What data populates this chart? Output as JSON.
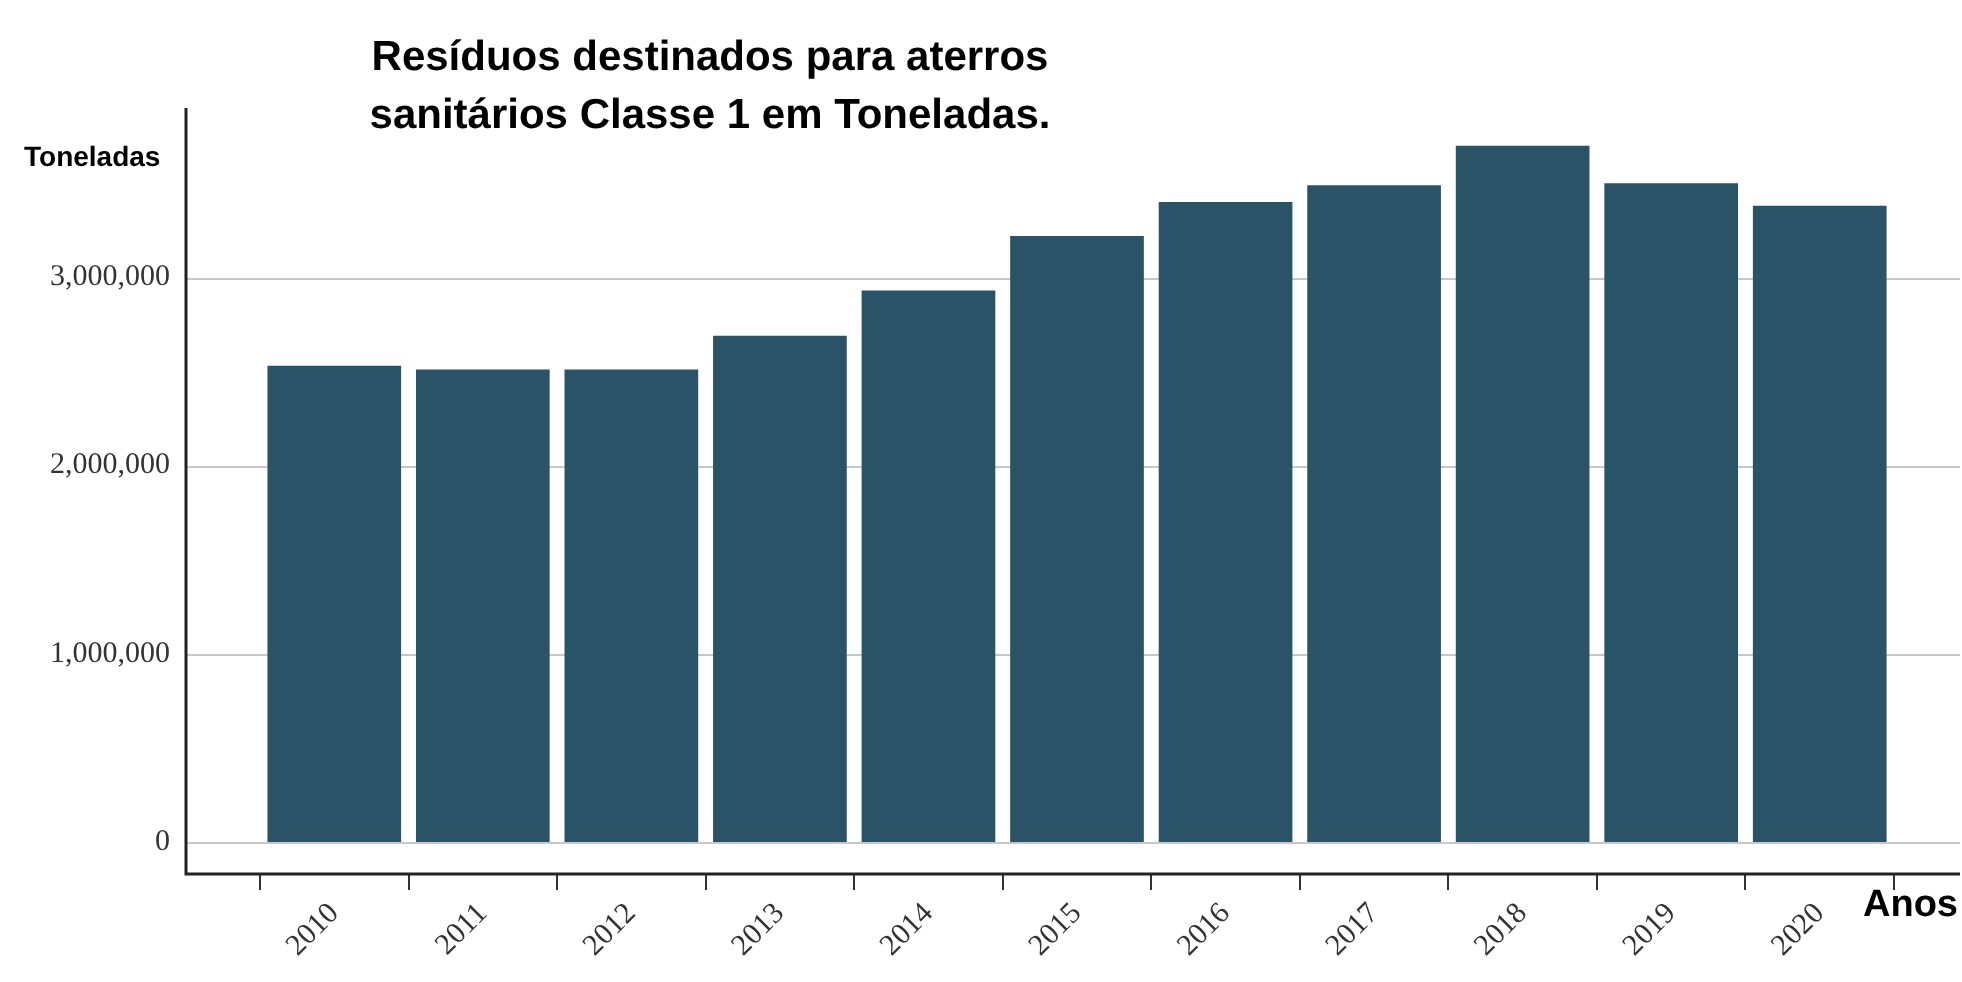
{
  "chart_data": {
    "type": "bar",
    "title": "Resíduos destinados para aterros sanitários Classe 1 em Toneladas.",
    "xlabel": "Anos",
    "ylabel": "Toneladas",
    "categories": [
      "2010",
      "2011",
      "2012",
      "2013",
      "2014",
      "2015",
      "2016",
      "2017",
      "2018",
      "2019",
      "2020"
    ],
    "values": [
      2530000,
      2510000,
      2510000,
      2690000,
      2930000,
      3220000,
      3400000,
      3490000,
      3700000,
      3500000,
      3380000
    ],
    "color": "#2b5368",
    "ylim": [
      -170000,
      3900000
    ],
    "yticks": [
      0,
      {
        "value": 1000000,
        "label": "1,000,000"
      },
      {
        "value": 2000000,
        "label": "2,000,000"
      },
      {
        "value": 3000000,
        "label": "3,000,000"
      }
    ],
    "grid": "y",
    "legend": false
  }
}
